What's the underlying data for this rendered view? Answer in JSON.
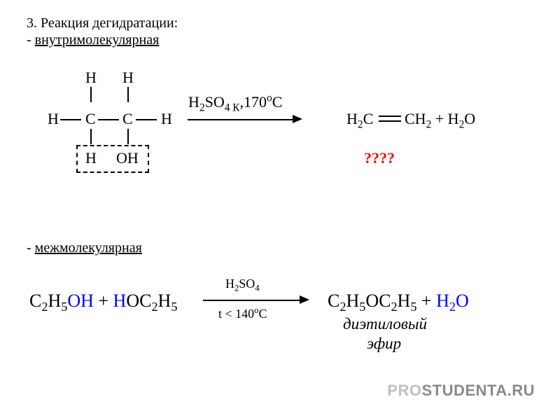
{
  "colors": {
    "background": "#ffffff",
    "text": "#000000",
    "highlight_blue": "#0000ff",
    "highlight_red": "#ff0000",
    "watermark_light": "#c0c0c0",
    "watermark_dark": "#8a8a8a"
  },
  "title": "3. Реакция дегидратации:",
  "subtype1_prefix": "- ",
  "subtype1": "внутримолекулярная",
  "structure": {
    "H": "H",
    "C": "C",
    "OH": "OH"
  },
  "reaction1": {
    "conditions_html": "H<sub>2</sub>SO<sub>4 К</sub>,170<sup>o</sup>C",
    "product_left": "H<sub>2</sub>C",
    "product_right": "CH<sub>2</sub> + H<sub>2</sub>O",
    "question": "????"
  },
  "subtype2_prefix": "- ",
  "subtype2": "межмолекулярная",
  "reaction2": {
    "r1_a": "C<sub>2</sub>H<sub>5</sub>",
    "r1_b": "OH",
    "plus": " + ",
    "r2_a": "H",
    "r2_b": "OC<sub>2</sub>H<sub>5</sub>",
    "top": "H<sub>2</sub>SO<sub>4</sub>",
    "bottom": "t < 140<sup>o</sup>C",
    "p1": "C<sub>2</sub>H<sub>5</sub>OC<sub>2</sub>H<sub>5</sub>",
    "plus2": "  + ",
    "p2": "H<sub>2</sub>O",
    "name1": "диэтиловый",
    "name2": "эфир"
  },
  "watermark": {
    "a": "PRO",
    "b": "STUDENTA.RU"
  }
}
